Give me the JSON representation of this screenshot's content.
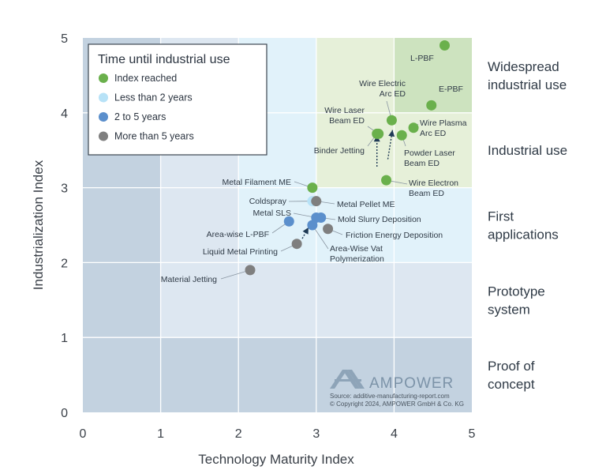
{
  "chart_data": {
    "type": "scatter",
    "xlabel": "Technology Maturity Index",
    "ylabel": "Industrialization Index",
    "xlim": [
      0,
      5
    ],
    "ylim": [
      0,
      5
    ],
    "x_ticks": [
      "0",
      "1",
      "2",
      "3",
      "4",
      "5"
    ],
    "y_ticks": [
      "0",
      "1",
      "2",
      "3",
      "4",
      "5"
    ],
    "legend": {
      "title": "Time until industrial use",
      "placement": "top-left",
      "items": [
        {
          "label": "Index reached",
          "color": "#6ab04c"
        },
        {
          "label": "Less than 2 years",
          "color": "#b7e2f7"
        },
        {
          "label": "2 to 5 years",
          "color": "#5b8fcc"
        },
        {
          "label": "More than 5 years",
          "color": "#7f7f7f"
        }
      ]
    },
    "stages": [
      {
        "label": [
          "Widespread",
          "industrial use"
        ],
        "y": [
          4,
          5
        ]
      },
      {
        "label": [
          "Industrial use"
        ],
        "y": [
          3,
          4
        ]
      },
      {
        "label": [
          "First",
          "applications"
        ],
        "y": [
          2,
          3
        ]
      },
      {
        "label": [
          "Prototype",
          "system"
        ],
        "y": [
          1,
          2
        ]
      },
      {
        "label": [
          "Proof of",
          "concept"
        ],
        "y": [
          0,
          1
        ]
      }
    ],
    "points": [
      {
        "name": [
          "L-PBF"
        ],
        "x": 4.65,
        "y": 4.9,
        "category": 0
      },
      {
        "name": [
          "E-PBF"
        ],
        "x": 4.48,
        "y": 4.1,
        "category": 0
      },
      {
        "name": [
          "Wire Electric",
          "Arc ED"
        ],
        "x": 3.97,
        "y": 3.9,
        "category": 0
      },
      {
        "name": [
          "Wire Plasma",
          "Arc ED"
        ],
        "x": 4.25,
        "y": 3.8,
        "category": 0
      },
      {
        "name": [
          "Wire Laser",
          "Beam ED"
        ],
        "x": 3.8,
        "y": 3.72,
        "category": 0
      },
      {
        "name": [
          "Binder Jetting"
        ],
        "x": 3.78,
        "y": 3.72,
        "category": 0
      },
      {
        "name": [
          "Powder Laser",
          "Beam ED"
        ],
        "x": 4.1,
        "y": 3.7,
        "category": 0
      },
      {
        "name": [
          "Wire Electron",
          "Beam ED"
        ],
        "x": 3.9,
        "y": 3.1,
        "category": 0
      },
      {
        "name": [
          "Metal Filament ME"
        ],
        "x": 2.95,
        "y": 3.0,
        "category": 0
      },
      {
        "name": [
          "Coldspray"
        ],
        "x": 2.95,
        "y": 2.82,
        "category": 1
      },
      {
        "name": [
          "Metal Pellet ME"
        ],
        "x": 3.0,
        "y": 2.82,
        "category": 3
      },
      {
        "name": [
          "Metal SLS"
        ],
        "x": 3.0,
        "y": 2.6,
        "category": 2
      },
      {
        "name": [
          "Mold Slurry Deposition"
        ],
        "x": 3.06,
        "y": 2.6,
        "category": 2
      },
      {
        "name": [
          "Area-wise L-PBF"
        ],
        "x": 2.65,
        "y": 2.55,
        "category": 2
      },
      {
        "name": [
          "Area-Wise Vat",
          "Polymerization"
        ],
        "x": 2.95,
        "y": 2.5,
        "category": 2
      },
      {
        "name": [
          "Friction Energy Deposition"
        ],
        "x": 3.15,
        "y": 2.45,
        "category": 3
      },
      {
        "name": [
          "Liquid Metal Printing"
        ],
        "x": 2.75,
        "y": 2.25,
        "category": 3
      },
      {
        "name": [
          "Material Jetting"
        ],
        "x": 2.15,
        "y": 1.9,
        "category": 3
      }
    ],
    "trend_arrows": [
      {
        "from": [
          3.78,
          3.28
        ],
        "to": [
          3.78,
          3.7
        ]
      },
      {
        "from": [
          3.92,
          3.38
        ],
        "to": [
          3.98,
          3.77
        ]
      },
      {
        "from": [
          2.82,
          2.32
        ],
        "to": [
          2.9,
          2.47
        ]
      }
    ],
    "branding": {
      "name": "AMPOWER",
      "source": "Source: additive-manufacturing-report.com",
      "copyright": "© Copyright 2024, AMPOWER GmbH & Co. KG"
    }
  }
}
